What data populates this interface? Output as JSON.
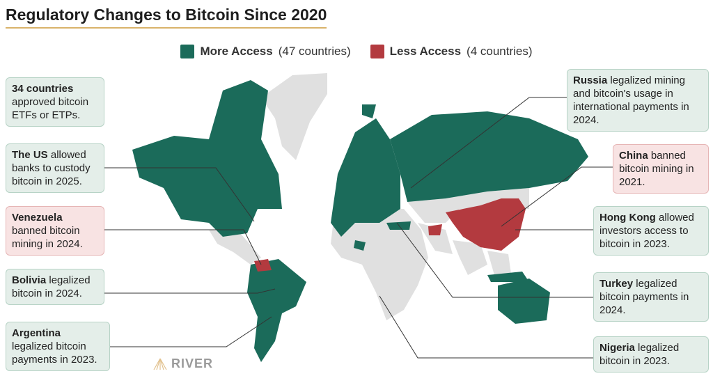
{
  "title": "Regulatory Changes to Bitcoin Since 2020",
  "legend": {
    "more": {
      "label": "More Access",
      "count": "(47 countries)",
      "color": "#1b6b5a"
    },
    "less": {
      "label": "Less Access",
      "count": "(4 countries)",
      "color": "#b33a3f"
    }
  },
  "callouts": {
    "etf": {
      "bold": "34 countries",
      "text": " approved bitcoin ETFs or ETPs."
    },
    "us": {
      "bold": "The US",
      "text": " allowed banks to custody bitcoin in 2025."
    },
    "venezuela": {
      "bold": "Venezuela",
      "text": " banned bitcoin mining in 2024."
    },
    "bolivia": {
      "bold": "Bolivia",
      "text": " legalized bitcoin in 2024."
    },
    "argentina": {
      "bold": "Argentina",
      "text": " legalized bitcoin payments in 2023."
    },
    "russia": {
      "bold": "Russia",
      "text": " legalized mining and bitcoin's usage in international payments in 2024."
    },
    "china": {
      "bold": "China",
      "text": " banned bitcoin mining in 2021."
    },
    "hongkong": {
      "bold": "Hong Kong",
      "text": " allowed investors access to bitcoin in 2023."
    },
    "turkey": {
      "bold": "Turkey",
      "text": " legalized bitcoin payments in 2024."
    },
    "nigeria": {
      "bold": "Nigeria",
      "text": " legalized bitcoin in 2023."
    }
  },
  "logo": "RIVER",
  "colors": {
    "land": "#e0e0e0",
    "green": "#1b6b5a",
    "red": "#b33a3f"
  }
}
